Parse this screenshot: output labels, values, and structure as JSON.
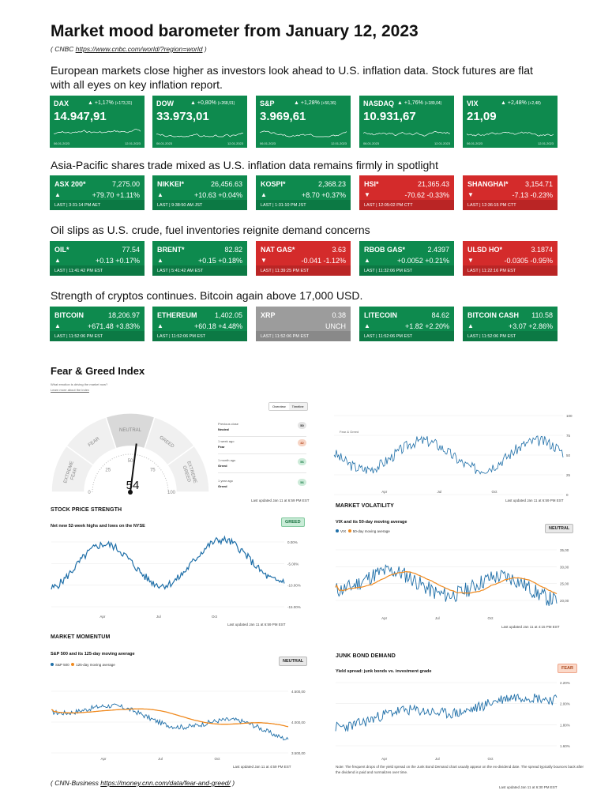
{
  "header": {
    "title": "Market mood barometer from January 12, 2023",
    "source_prefix": "( CNBC ",
    "source_link": "https://www.cnbc.com/world/?region=world",
    "source_suffix": " )"
  },
  "sections": {
    "europe_line1": "European markets close higher as investors look ahead to U.S. inflation data. Stock futures are flat",
    "europe_line2": "with all eyes on key inflation report.",
    "asia": "Asia-Pacific shares trade mixed as U.S. inflation data remains firmly in spotlight",
    "oil": "Oil slips as U.S. crude, fuel inventories reignite demand concerns",
    "crypto": "Strength of cryptos continues. Bitcoin again above 17,000 USD."
  },
  "indices": [
    {
      "name": "DAX",
      "change": "▲ +1,17%",
      "change_abs": "(+173,31)",
      "value": "14.947,91",
      "from": "06.01.2023",
      "to": "12.01.2023"
    },
    {
      "name": "DOW",
      "change": "▲ +0,80%",
      "change_abs": "(+268,91)",
      "value": "33.973,01",
      "from": "06.01.2023",
      "to": "12.01.2023"
    },
    {
      "name": "S&P",
      "change": "▲ +1,28%",
      "change_abs": "(+50,36)",
      "value": "3.969,61",
      "from": "06.01.2023",
      "to": "12.01.2023"
    },
    {
      "name": "NASDAQ",
      "change": "▲ +1,76%",
      "change_abs": "(+189,04)",
      "value": "10.931,67",
      "from": "06.01.2023",
      "to": "12.01.2023"
    },
    {
      "name": "VIX",
      "change": "▲ +2,48%",
      "change_abs": "(+2,48)",
      "value": "21,09",
      "from": "06.01.2023",
      "to": "12.01.2023"
    }
  ],
  "asia": [
    {
      "name": "ASX 200*",
      "price": "7,275.00",
      "arrow": "▲",
      "change": "+79.70 +1.11%",
      "time": "LAST | 3:31:14 PM AET",
      "color": "g"
    },
    {
      "name": "NIKKEI*",
      "price": "26,456.63",
      "arrow": "▲",
      "change": "+10.63 +0.04%",
      "time": "LAST | 9:38:50 AM JST",
      "color": "g"
    },
    {
      "name": "KOSPI*",
      "price": "2,368.23",
      "arrow": "▲",
      "change": "+8.70 +0.37%",
      "time": "LAST | 1:31:10 PM JST",
      "color": "g"
    },
    {
      "name": "HSI*",
      "price": "21,365.43",
      "arrow": "▼",
      "change": "-70.62 -0.33%",
      "time": "LAST | 12:05:02 PM CTT",
      "color": "r"
    },
    {
      "name": "SHANGHAI*",
      "price": "3,154.71",
      "arrow": "▼",
      "change": "-7.13 -0.23%",
      "time": "LAST | 12:36:15 PM CTT",
      "color": "r"
    }
  ],
  "oil": [
    {
      "name": "OIL*",
      "price": "77.54",
      "arrow": "▲",
      "change": "+0.13 +0.17%",
      "time": "LAST | 11:41:42 PM EST",
      "color": "g"
    },
    {
      "name": "BRENT*",
      "price": "82.82",
      "arrow": "▲",
      "change": "+0.15 +0.18%",
      "time": "LAST | 5:41:42 AM EST",
      "color": "g"
    },
    {
      "name": "NAT GAS*",
      "price": "3.63",
      "arrow": "▼",
      "change": "-0.041 -1.12%",
      "time": "LAST | 11:39:25 PM EST",
      "color": "r"
    },
    {
      "name": "RBOB GAS*",
      "price": "2.4397",
      "arrow": "▲",
      "change": "+0.0052 +0.21%",
      "time": "LAST | 11:32:06 PM EST",
      "color": "g"
    },
    {
      "name": "ULSD HO*",
      "price": "3.1874",
      "arrow": "▼",
      "change": "-0.0305 -0.95%",
      "time": "LAST | 11:22:16 PM EST",
      "color": "r"
    }
  ],
  "crypto": [
    {
      "name": "BITCOIN",
      "price": "18,206.97",
      "arrow": "▲",
      "change": "+671.48 +3.83%",
      "time": "LAST | 11:52:06 PM EST",
      "color": "g"
    },
    {
      "name": "ETHEREUM",
      "price": "1,402.05",
      "arrow": "▲",
      "change": "+60.18 +4.48%",
      "time": "LAST | 11:52:06 PM EST",
      "color": "g"
    },
    {
      "name": "XRP",
      "price": "0.38",
      "arrow": "",
      "change": "UNCH",
      "time": "LAST | 11:52:06 PM EST",
      "color": "gr"
    },
    {
      "name": "LITECOIN",
      "price": "84.62",
      "arrow": "▲",
      "change": "+1.82 +2.20%",
      "time": "LAST | 11:52:06 PM EST",
      "color": "g"
    },
    {
      "name": "BITCOIN CASH",
      "price": "110.58",
      "arrow": "▲",
      "change": "+3.07 +2.86%",
      "time": "LAST | 11:52:06 PM EST",
      "color": "g"
    }
  ],
  "fear_greed": {
    "title": "Fear & Greed Index",
    "question": "What emotion is driving the market now?",
    "learn_more": "Learn more about the index",
    "tab_overview": "Overview",
    "tab_timeline": "Timeline",
    "value": "54",
    "value_num": 54,
    "zones": [
      "EXTREME FEAR",
      "FEAR",
      "NEUTRAL",
      "GREED",
      "EXTREME GREED"
    ],
    "ticks": [
      "0",
      "25",
      "50",
      "75",
      "100"
    ],
    "history": [
      {
        "label": "Previous close",
        "status": "Neutral",
        "value": "50",
        "cls": "n"
      },
      {
        "label": "1 week ago",
        "status": "Fear",
        "value": "42",
        "cls": "f"
      },
      {
        "label": "1 month ago",
        "status": "Greed",
        "value": "56",
        "cls": "gr"
      },
      {
        "label": "1 year ago",
        "status": "Greed",
        "value": "56",
        "cls": "gr"
      }
    ],
    "updated": "Last updated Jan 11 at 6:59 PM EST",
    "overview_updated": "Last updated Jan 11 at 6:59 PM EST"
  },
  "timeline_chart": {
    "legend": "Fear & Greed",
    "yticks": [
      "100",
      "75",
      "50",
      "25",
      "0"
    ],
    "xticks": [
      "Apr",
      "Jul",
      "Oct"
    ],
    "updated": "Last updated Jan 11 at 6:59 PM EST"
  },
  "stock_strength": {
    "title": "STOCK PRICE STRENGTH",
    "subtitle": "Net new 52-week highs and lows on the NYSE",
    "badge": "GREED",
    "yticks": [
      "0.00%",
      "-5.00%",
      "-10.00%",
      "-15.00%"
    ],
    "xticks": [
      "Apr",
      "Jul",
      "Oct"
    ],
    "updated": "Last updated Jan 11 at 6:59 PM EST"
  },
  "market_volatility": {
    "title": "MARKET VOLATILITY",
    "subtitle": "VIX and its 50-day moving average",
    "legend_a": "VIX",
    "legend_b": "50-day moving average",
    "badge": "NEUTRAL",
    "yticks": [
      "35,00",
      "30,00",
      "25,00",
      "20,00"
    ],
    "xticks": [
      "Apr",
      "Jul",
      "Oct"
    ],
    "updated": "Last updated Jan 11 at 4:15 PM EST"
  },
  "market_momentum": {
    "title": "MARKET MOMENTUM",
    "subtitle": "S&P 500 and its 125-day moving average",
    "legend_a": "S&P 500",
    "legend_b": "125-day moving average",
    "badge": "NEUTRAL",
    "yticks": [
      "4.500,00",
      "4.000,00",
      "3.500,00"
    ],
    "xticks": [
      "Apr",
      "Jul",
      "Oct"
    ],
    "updated": "Last updated Jan 11 at 4:59 PM EST"
  },
  "junk_bond": {
    "title": "JUNK BOND DEMAND",
    "subtitle": "Yield spread: junk bonds vs. investment grade",
    "badge": "FEAR",
    "yticks": [
      "2.20%",
      "2.00%",
      "1.80%",
      "1.60%"
    ],
    "xticks": [
      "Apr",
      "Jul",
      "Oct"
    ],
    "note": "Note: The frequent drops of the yield spread on the Junk Bond Demand chart usually appear on the ex-dividend date. The spread typically bounces back after the dividend is paid and normalizes over time.",
    "updated": "Last updated Jan 11 at 6:30 PM EST"
  },
  "footer": {
    "prefix": "( CNN-Business ",
    "link": "https://money.cnn.com/data/fear-and-greed/",
    "suffix": " )"
  },
  "colors": {
    "green": "#0e8a4e",
    "red": "#d42b2b",
    "gray": "#9c9c9c",
    "line_blue": "#1f6fa8",
    "line_orange": "#f08a1f"
  }
}
